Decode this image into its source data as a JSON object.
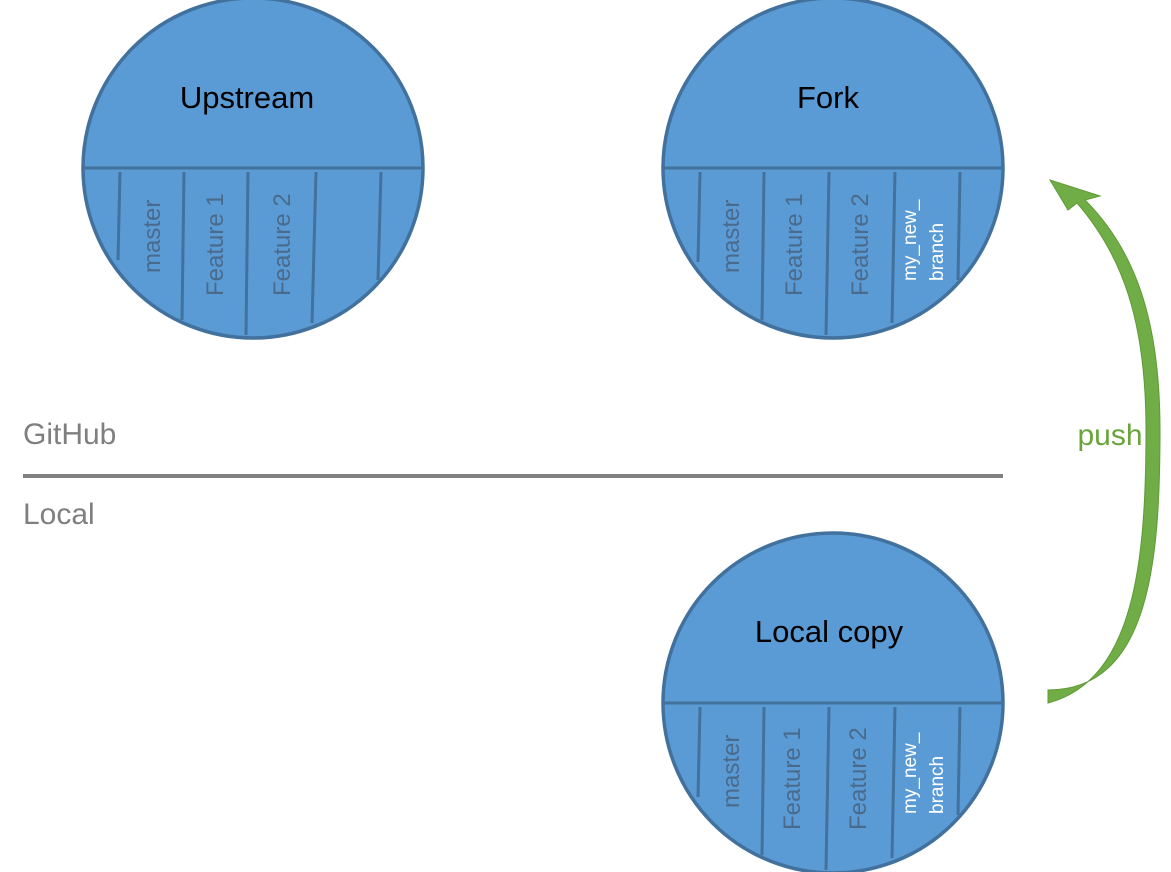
{
  "sections": {
    "top": "GitHub",
    "bottom": "Local"
  },
  "repos": {
    "upstream": {
      "title": "Upstream",
      "branches": [
        "master",
        "Feature 1",
        "Feature 2"
      ]
    },
    "fork": {
      "title": "Fork",
      "branches": [
        "master",
        "Feature 1",
        "Feature 2"
      ],
      "new_branch": [
        "my_new_",
        "branch"
      ]
    },
    "local": {
      "title": "Local copy",
      "branches": [
        "master",
        "Feature 1",
        "Feature 2"
      ],
      "new_branch": [
        "my_new_",
        "branch"
      ]
    }
  },
  "arrow": {
    "label": "push",
    "color": "#70ad47"
  },
  "colors": {
    "repo_fill": "#5b9bd5",
    "repo_stroke": "#41719c",
    "divider": "#808080"
  }
}
